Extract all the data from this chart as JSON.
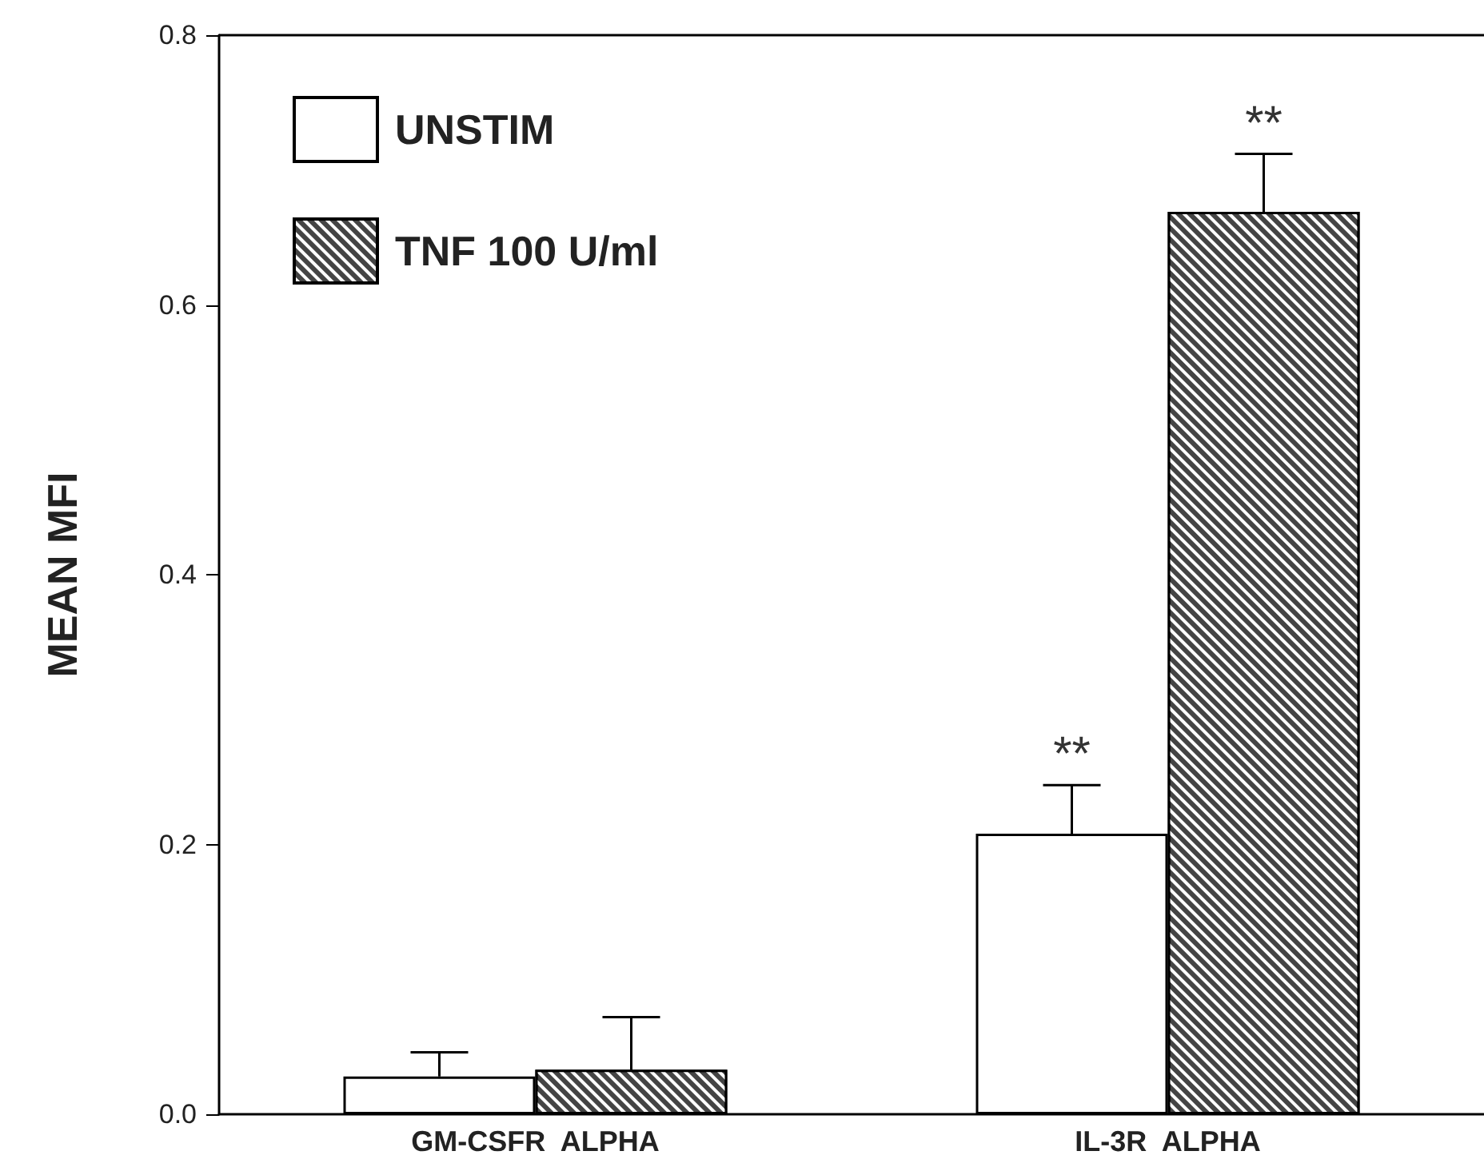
{
  "chart_data": {
    "type": "bar",
    "ylabel": "MEAN MFI",
    "categories": [
      "GM-CSFR  ALPHA",
      "IL-3R  ALPHA"
    ],
    "series": [
      {
        "name": "UNSTIM",
        "color": "#ffffff",
        "values": [
          0.028,
          0.208
        ],
        "errors": [
          [
            0.028,
            0.046
          ],
          [
            0.208,
            0.244
          ]
        ]
      },
      {
        "name": "TNF 100 U/ml",
        "color": "#444444",
        "values": [
          0.033,
          0.669
        ],
        "errors": [
          [
            0.033,
            0.072
          ],
          [
            0.669,
            0.712
          ]
        ]
      }
    ],
    "ylim": [
      0,
      0.8
    ],
    "yticks": [
      {
        "value": 0,
        "label": "0.0"
      },
      {
        "value": 0.2,
        "label": "0.2"
      },
      {
        "value": 0.4,
        "label": "0.4"
      },
      {
        "value": 0.6,
        "label": "0.6"
      },
      {
        "value": 0.8,
        "label": "0.8"
      }
    ],
    "annotations": [
      {
        "text": "**",
        "x": "IL-3R  ALPHA",
        "y": 0.244
      },
      {
        "text": "**",
        "x": "IL-3R  ALPHA",
        "y": 0.669
      }
    ],
    "legend": "top left",
    "grid": false
  }
}
